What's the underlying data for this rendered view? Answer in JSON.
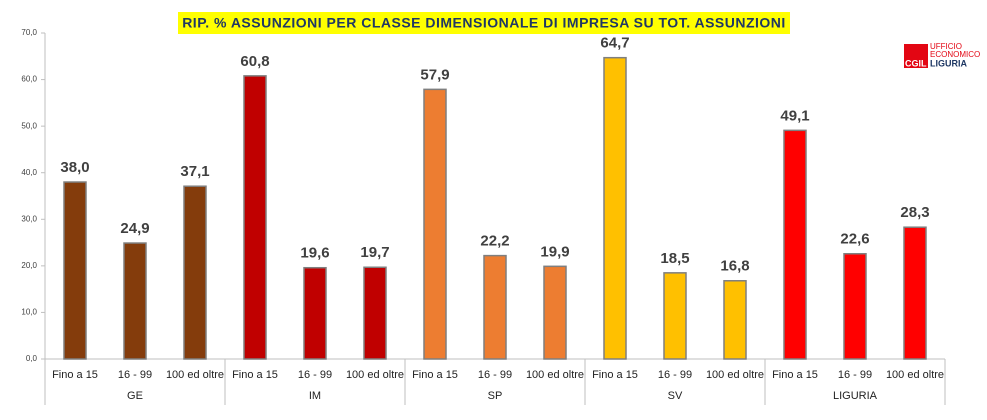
{
  "chart_data": {
    "type": "bar",
    "title": "RIP. % ASSUNZIONI PER CLASSE DIMENSIONALE DI IMPRESA SU TOT. ASSUNZIONI",
    "logo": [
      "UFFICIO",
      "ECONOMICO",
      "CGIL",
      "LIGURIA"
    ],
    "categories": [
      "Fino a 15",
      "16  - 99",
      "100 ed oltre"
    ],
    "series": [
      {
        "name": "GE",
        "color": "#843c0c",
        "values": [
          38.0,
          24.9,
          37.1
        ],
        "value_labels": [
          "38,0",
          "24,9",
          "37,1"
        ]
      },
      {
        "name": "IM",
        "color": "#c00000",
        "values": [
          60.8,
          19.6,
          19.7
        ],
        "value_labels": [
          "60,8",
          "19,6",
          "19,7"
        ]
      },
      {
        "name": "SP",
        "color": "#ed7d31",
        "values": [
          57.9,
          22.2,
          19.9
        ],
        "value_labels": [
          "57,9",
          "22,2",
          "19,9"
        ]
      },
      {
        "name": "SV",
        "color": "#ffc000",
        "values": [
          64.7,
          18.5,
          16.8
        ],
        "value_labels": [
          "64,7",
          "18,5",
          "16,8"
        ]
      },
      {
        "name": "LIGURIA",
        "color": "#ff0000",
        "values": [
          49.1,
          22.6,
          28.3
        ],
        "value_labels": [
          "49,1",
          "22,6",
          "28,3"
        ]
      }
    ],
    "ylim": [
      0,
      70
    ],
    "yticks": [
      {
        "value": 0,
        "label": "0,0"
      },
      {
        "value": 10,
        "label": "10,0"
      },
      {
        "value": 20,
        "label": "20,0"
      },
      {
        "value": 30,
        "label": "30,0"
      },
      {
        "value": 40,
        "label": "40,0"
      },
      {
        "value": 50,
        "label": "50,0"
      },
      {
        "value": 60,
        "label": "60,0"
      },
      {
        "value": 70,
        "label": "70,0"
      }
    ],
    "grid": false
  }
}
